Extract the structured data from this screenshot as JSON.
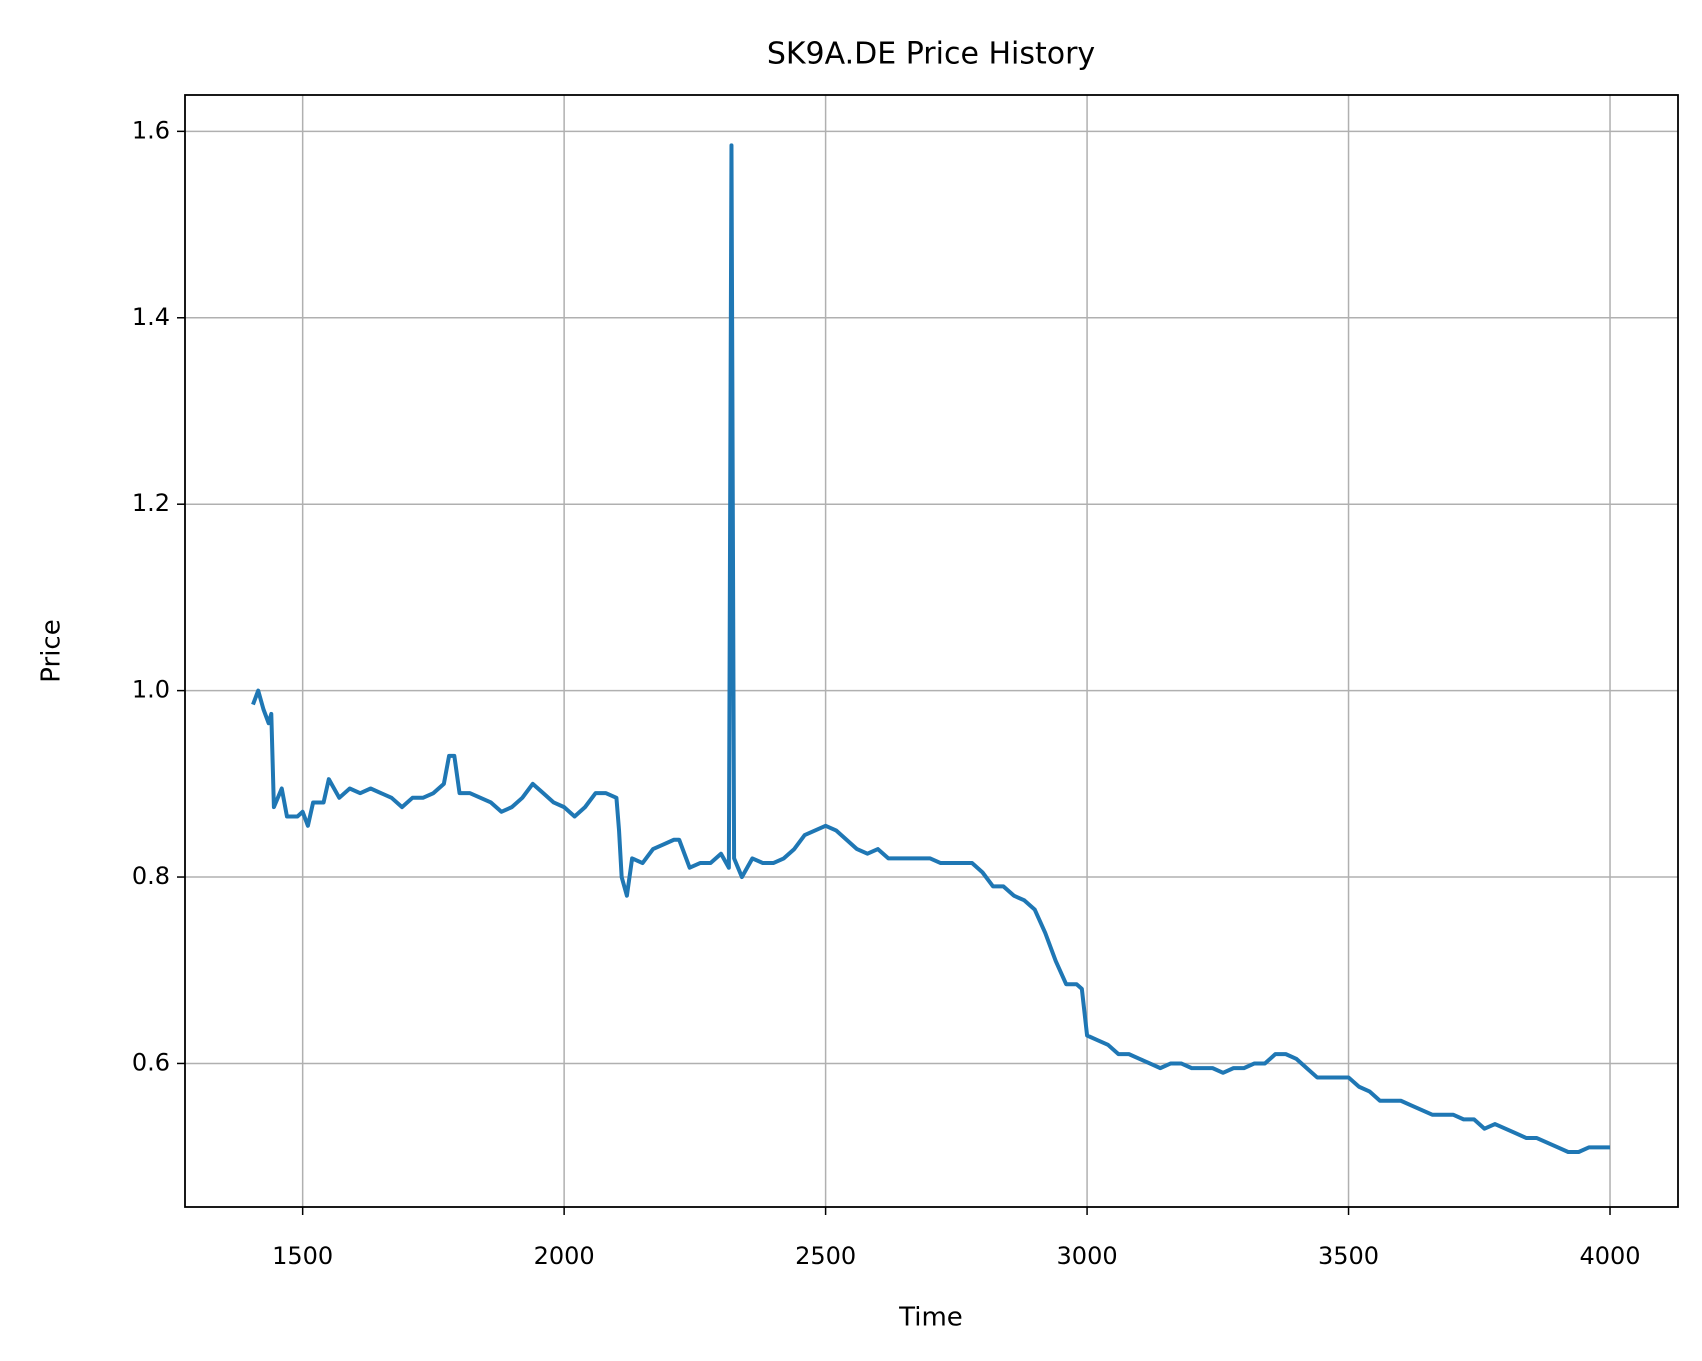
{
  "chart_data": {
    "type": "line",
    "title": "SK9A.DE Price History",
    "x_label": "Time",
    "y_label": "Price",
    "color": "#1f77b4",
    "grid": true,
    "xlim": [
      1275,
      4130
    ],
    "ylim": [
      0.446,
      1.639
    ],
    "xticks": [
      1500,
      2000,
      2500,
      3000,
      3500,
      4000
    ],
    "yticks": [
      0.6,
      0.8,
      {
        "value": 1.0,
        "label": "1.0"
      },
      1.2,
      1.4,
      1.6
    ],
    "x": [
      1405,
      1415,
      1425,
      1435,
      1440,
      1445,
      1460,
      1470,
      1490,
      1500,
      1510,
      1520,
      1540,
      1550,
      1570,
      1590,
      1610,
      1630,
      1650,
      1670,
      1690,
      1710,
      1730,
      1750,
      1770,
      1780,
      1790,
      1800,
      1820,
      1840,
      1860,
      1880,
      1900,
      1920,
      1940,
      1960,
      1980,
      2000,
      2020,
      2040,
      2060,
      2080,
      2100,
      2105,
      2110,
      2120,
      2130,
      2150,
      2170,
      2190,
      2210,
      2220,
      2240,
      2260,
      2280,
      2300,
      2315,
      2320,
      2325,
      2340,
      2360,
      2380,
      2400,
      2420,
      2440,
      2460,
      2480,
      2500,
      2520,
      2540,
      2560,
      2580,
      2600,
      2620,
      2640,
      2660,
      2680,
      2700,
      2720,
      2740,
      2760,
      2780,
      2800,
      2820,
      2840,
      2860,
      2880,
      2900,
      2920,
      2940,
      2960,
      2980,
      2990,
      3000,
      3020,
      3040,
      3060,
      3080,
      3100,
      3120,
      3140,
      3160,
      3180,
      3200,
      3220,
      3240,
      3260,
      3280,
      3300,
      3320,
      3340,
      3360,
      3380,
      3400,
      3420,
      3440,
      3460,
      3480,
      3500,
      3520,
      3540,
      3560,
      3580,
      3600,
      3620,
      3640,
      3660,
      3680,
      3700,
      3720,
      3740,
      3760,
      3780,
      3800,
      3820,
      3840,
      3860,
      3880,
      3900,
      3920,
      3940,
      3960,
      3980,
      4000
    ],
    "values": [
      0.985,
      1.0,
      0.98,
      0.965,
      0.975,
      0.875,
      0.895,
      0.865,
      0.865,
      0.87,
      0.855,
      0.88,
      0.88,
      0.905,
      0.885,
      0.895,
      0.89,
      0.895,
      0.89,
      0.885,
      0.875,
      0.885,
      0.885,
      0.89,
      0.9,
      0.93,
      0.93,
      0.89,
      0.89,
      0.885,
      0.88,
      0.87,
      0.875,
      0.885,
      0.9,
      0.89,
      0.88,
      0.875,
      0.865,
      0.875,
      0.89,
      0.89,
      0.885,
      0.85,
      0.8,
      0.78,
      0.82,
      0.815,
      0.83,
      0.835,
      0.84,
      0.84,
      0.81,
      0.815,
      0.815,
      0.825,
      0.81,
      1.585,
      0.82,
      0.8,
      0.82,
      0.815,
      0.815,
      0.82,
      0.83,
      0.845,
      0.85,
      0.855,
      0.85,
      0.84,
      0.83,
      0.825,
      0.83,
      0.82,
      0.82,
      0.82,
      0.82,
      0.82,
      0.815,
      0.815,
      0.815,
      0.815,
      0.805,
      0.79,
      0.79,
      0.78,
      0.775,
      0.765,
      0.74,
      0.71,
      0.685,
      0.685,
      0.68,
      0.63,
      0.625,
      0.62,
      0.61,
      0.61,
      0.605,
      0.6,
      0.595,
      0.6,
      0.6,
      0.595,
      0.595,
      0.595,
      0.59,
      0.595,
      0.595,
      0.6,
      0.6,
      0.61,
      0.61,
      0.605,
      0.595,
      0.585,
      0.585,
      0.585,
      0.585,
      0.575,
      0.57,
      0.56,
      0.56,
      0.56,
      0.555,
      0.55,
      0.545,
      0.545,
      0.545,
      0.54,
      0.54,
      0.53,
      0.535,
      0.53,
      0.525,
      0.52,
      0.52,
      0.515,
      0.51,
      0.505,
      0.505,
      0.51,
      0.51,
      0.51
    ]
  }
}
